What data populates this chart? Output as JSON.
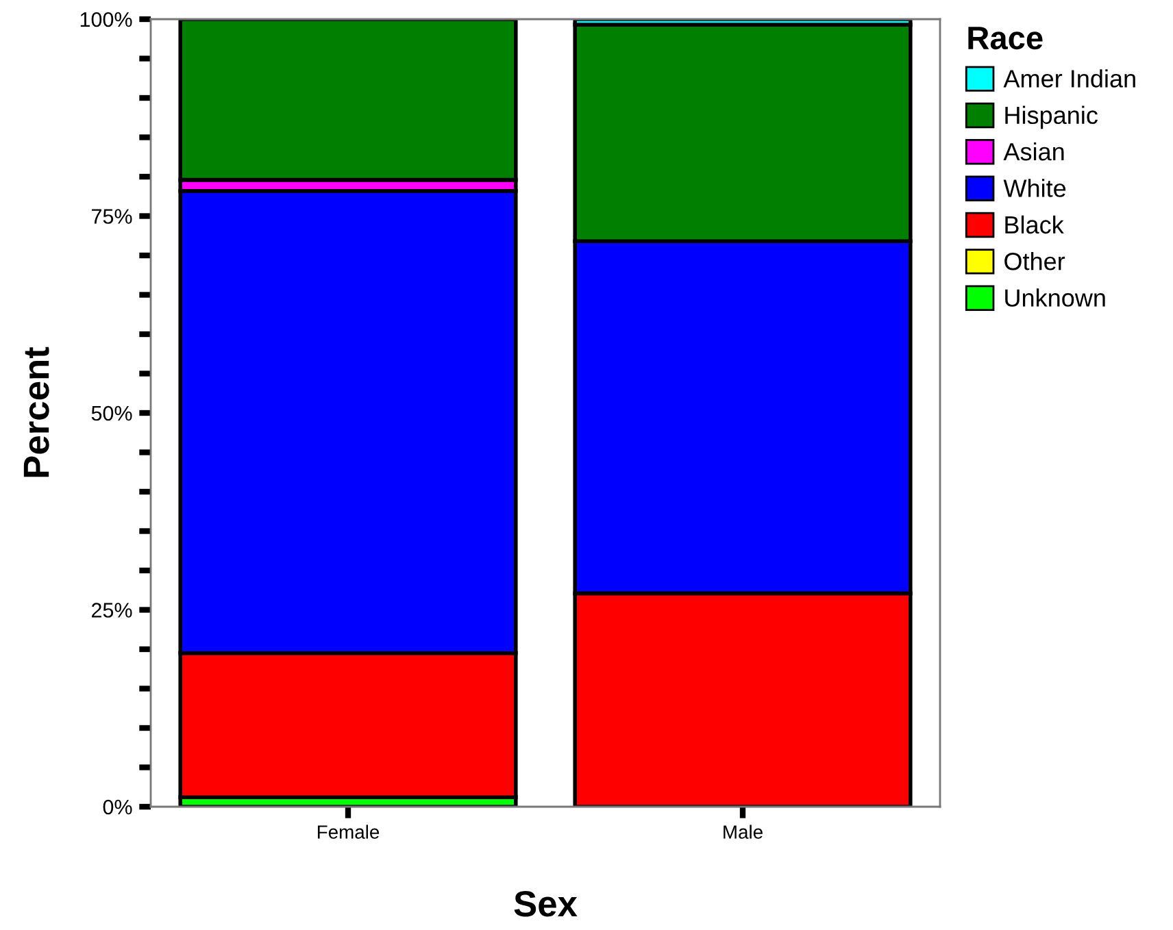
{
  "chart_data": {
    "type": "bar",
    "stacked": true,
    "xlabel": "Sex",
    "ylabel": "Percent",
    "legend_title": "Race",
    "legend": "top right",
    "categories": [
      "Female",
      "Male"
    ],
    "series": [
      {
        "name": "Unknown",
        "color": "#00ff00",
        "values": [
          1.2,
          null
        ]
      },
      {
        "name": "Other",
        "color": "#ffff00",
        "values": [
          null,
          null
        ]
      },
      {
        "name": "Black",
        "color": "#ff0000",
        "values": [
          18.3,
          27.1
        ]
      },
      {
        "name": "White",
        "color": "#0000ff",
        "values": [
          58.7,
          44.7
        ]
      },
      {
        "name": "Asian",
        "color": "#ff00ff",
        "values": [
          1.4,
          null
        ]
      },
      {
        "name": "Hispanic",
        "color": "#007f00",
        "values": [
          20.4,
          27.5
        ]
      },
      {
        "name": "Amer Indian",
        "color": "#00ffff",
        "values": [
          null,
          0.7
        ]
      }
    ],
    "ylim": [
      0,
      100
    ],
    "yticks": [
      {
        "value": 0,
        "label": "0%"
      },
      {
        "value": 5,
        "label": null
      },
      {
        "value": 10,
        "label": null
      },
      {
        "value": 15,
        "label": null
      },
      {
        "value": 20,
        "label": null
      },
      {
        "value": 25,
        "label": "25%"
      },
      {
        "value": 30,
        "label": null
      },
      {
        "value": 35,
        "label": null
      },
      {
        "value": 40,
        "label": null
      },
      {
        "value": 45,
        "label": null
      },
      {
        "value": 50,
        "label": "50%"
      },
      {
        "value": 55,
        "label": null
      },
      {
        "value": 60,
        "label": null
      },
      {
        "value": 65,
        "label": null
      },
      {
        "value": 70,
        "label": null
      },
      {
        "value": 75,
        "label": "75%"
      },
      {
        "value": 80,
        "label": null
      },
      {
        "value": 85,
        "label": null
      },
      {
        "value": 90,
        "label": null
      },
      {
        "value": 95,
        "label": null
      },
      {
        "value": 100,
        "label": "100%"
      }
    ]
  }
}
